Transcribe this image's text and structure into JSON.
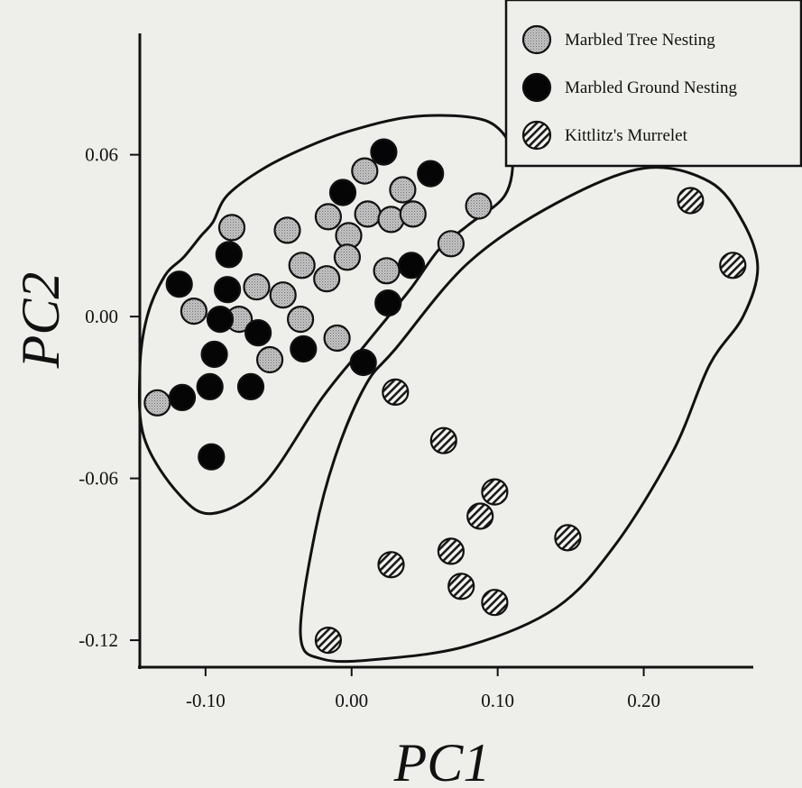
{
  "chart_data": {
    "type": "scatter",
    "xlabel": "PC1",
    "ylabel": "PC2",
    "xlim": [
      -0.145,
      0.275
    ],
    "ylim": [
      -0.13,
      0.105
    ],
    "x_ticks": [
      -0.1,
      0.0,
      0.1,
      0.2
    ],
    "x_tick_labels": [
      "-0.10",
      "0.00",
      "0.10",
      "0.20"
    ],
    "y_ticks": [
      0.06,
      0.0,
      -0.06,
      -0.12
    ],
    "y_tick_labels": [
      "0.06",
      "0.00",
      "-0.06",
      "-0.12"
    ],
    "grid": false,
    "legend_position": "top-right",
    "series": [
      {
        "name": "Marbled Tree Nesting",
        "marker": "stipple",
        "color": "#b4b4b4",
        "points": [
          [
            0.009,
            0.054
          ],
          [
            0.035,
            0.047
          ],
          [
            0.087,
            0.041
          ],
          [
            -0.082,
            0.033
          ],
          [
            -0.044,
            0.032
          ],
          [
            -0.016,
            0.037
          ],
          [
            0.011,
            0.038
          ],
          [
            0.027,
            0.036
          ],
          [
            0.042,
            0.038
          ],
          [
            -0.002,
            0.03
          ],
          [
            0.068,
            0.027
          ],
          [
            -0.003,
            0.022
          ],
          [
            -0.034,
            0.019
          ],
          [
            -0.017,
            0.014
          ],
          [
            0.024,
            0.017
          ],
          [
            -0.065,
            0.011
          ],
          [
            -0.047,
            0.008
          ],
          [
            -0.108,
            0.002
          ],
          [
            -0.077,
            -0.001
          ],
          [
            -0.035,
            -0.001
          ],
          [
            -0.01,
            -0.008
          ],
          [
            -0.056,
            -0.016
          ],
          [
            -0.133,
            -0.032
          ]
        ]
      },
      {
        "name": "Marbled Ground Nesting",
        "marker": "solid",
        "color": "#050505",
        "points": [
          [
            0.022,
            0.061
          ],
          [
            0.054,
            0.053
          ],
          [
            -0.006,
            0.046
          ],
          [
            -0.084,
            0.023
          ],
          [
            -0.118,
            0.012
          ],
          [
            -0.085,
            0.01
          ],
          [
            0.041,
            0.019
          ],
          [
            0.025,
            0.005
          ],
          [
            -0.09,
            -0.001
          ],
          [
            -0.064,
            -0.006
          ],
          [
            -0.033,
            -0.012
          ],
          [
            -0.094,
            -0.014
          ],
          [
            0.008,
            -0.017
          ],
          [
            -0.097,
            -0.026
          ],
          [
            -0.069,
            -0.026
          ],
          [
            -0.116,
            -0.03
          ],
          [
            -0.096,
            -0.052
          ]
        ]
      },
      {
        "name": "Kittlitz's Murrelet",
        "marker": "hatched",
        "color": "#cfcfcf",
        "points": [
          [
            0.232,
            0.043
          ],
          [
            0.261,
            0.019
          ],
          [
            0.03,
            -0.028
          ],
          [
            0.063,
            -0.046
          ],
          [
            0.098,
            -0.065
          ],
          [
            0.088,
            -0.074
          ],
          [
            0.148,
            -0.082
          ],
          [
            0.068,
            -0.087
          ],
          [
            0.027,
            -0.092
          ],
          [
            0.075,
            -0.1
          ],
          [
            0.098,
            -0.106
          ],
          [
            -0.016,
            -0.12
          ]
        ]
      }
    ],
    "enclosures": [
      {
        "name": "marbled-group-outline",
        "points": [
          [
            -0.095,
            0.035
          ],
          [
            -0.085,
            0.045
          ],
          [
            -0.06,
            0.055
          ],
          [
            -0.03,
            0.063
          ],
          [
            0.0,
            0.069
          ],
          [
            0.04,
            0.074
          ],
          [
            0.08,
            0.074
          ],
          [
            0.1,
            0.07
          ],
          [
            0.11,
            0.06
          ],
          [
            0.105,
            0.045
          ],
          [
            0.08,
            0.034
          ],
          [
            0.06,
            0.025
          ],
          [
            0.04,
            0.01
          ],
          [
            0.01,
            -0.01
          ],
          [
            -0.02,
            -0.03
          ],
          [
            -0.06,
            -0.062
          ],
          [
            -0.095,
            -0.073
          ],
          [
            -0.118,
            -0.066
          ],
          [
            -0.142,
            -0.045
          ],
          [
            -0.145,
            -0.02
          ],
          [
            -0.14,
            0.0
          ],
          [
            -0.128,
            0.015
          ],
          [
            -0.115,
            0.022
          ],
          [
            -0.103,
            0.03
          ]
        ]
      },
      {
        "name": "kittlitz-group-outline",
        "points": [
          [
            0.2,
            0.055
          ],
          [
            0.245,
            0.05
          ],
          [
            0.268,
            0.035
          ],
          [
            0.278,
            0.018
          ],
          [
            0.268,
            0.0
          ],
          [
            0.245,
            -0.018
          ],
          [
            0.22,
            -0.05
          ],
          [
            0.18,
            -0.085
          ],
          [
            0.14,
            -0.108
          ],
          [
            0.08,
            -0.122
          ],
          [
            0.02,
            -0.127
          ],
          [
            -0.02,
            -0.127
          ],
          [
            -0.035,
            -0.118
          ],
          [
            -0.025,
            -0.08
          ],
          [
            -0.01,
            -0.05
          ],
          [
            0.01,
            -0.025
          ],
          [
            0.03,
            -0.012
          ],
          [
            0.08,
            0.02
          ],
          [
            0.14,
            0.042
          ]
        ]
      }
    ]
  }
}
